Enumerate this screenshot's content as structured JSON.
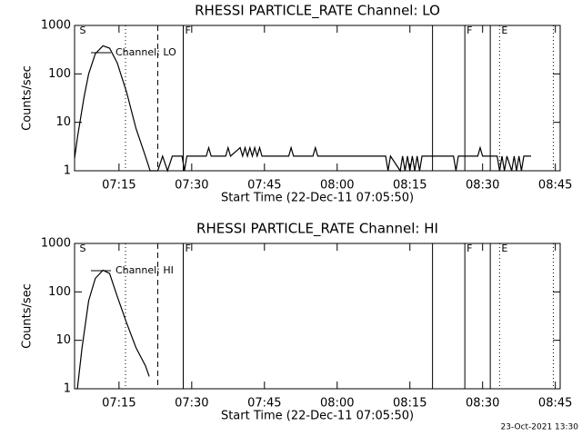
{
  "chart_data": [
    {
      "type": "line",
      "title": "RHESSI PARTICLE_RATE Channel: LO",
      "xlabel": "Start Time (22-Dec-11 07:05:50)",
      "ylabel": "Counts/sec",
      "log_y": true,
      "ylim": [
        1,
        1000
      ],
      "yticks": [
        1,
        10,
        100,
        1000
      ],
      "xlim": [
        "07:05:50",
        "08:46:00"
      ],
      "xticks": [
        "07:15",
        "07:30",
        "07:45",
        "08:00",
        "08:15",
        "08:30",
        "08:45"
      ],
      "markers": [
        {
          "time": "07:06:30",
          "label": "S"
        },
        {
          "time": "07:16:20",
          "style": "dotted"
        },
        {
          "time": "07:23:00",
          "style": "dashed"
        },
        {
          "time": "07:28:15",
          "style": "solid",
          "label": "F"
        },
        {
          "time": "08:19:40",
          "style": "solid"
        },
        {
          "time": "08:26:20",
          "style": "solid",
          "label": "F"
        },
        {
          "time": "08:31:35",
          "style": "solid"
        },
        {
          "time": "08:33:30",
          "style": "dotted",
          "label": "E"
        },
        {
          "time": "08:44:35",
          "style": "dotted"
        }
      ],
      "series": [
        {
          "name": "Channel: LO",
          "color": "#000000",
          "x": [
            "07:05:50",
            "07:06:25",
            "07:07:47",
            "07:08:45",
            "07:10:07",
            "07:11:41",
            "07:13:03",
            "07:14:37",
            "07:16:34",
            "07:18:31",
            "07:20:27",
            "07:21:25",
            "07:23:00",
            "07:24:00",
            "07:25:00",
            "07:26:00",
            "07:28:00",
            "07:28:30",
            "07:29:00",
            "07:33:00",
            "07:33:30",
            "07:34:00",
            "07:37:00",
            "07:37:30",
            "07:38:00",
            "07:40:00",
            "07:40:30",
            "07:41:00",
            "07:41:30",
            "07:42:00",
            "07:42:30",
            "07:43:00",
            "07:43:30",
            "07:44:00",
            "07:44:30",
            "07:50:00",
            "07:50:30",
            "07:51:00",
            "07:55:00",
            "07:55:30",
            "07:56:00",
            "08:10:00",
            "08:10:30",
            "08:11:00",
            "08:13:00",
            "08:13:30",
            "08:14:00",
            "08:14:30",
            "08:15:00",
            "08:15:30",
            "08:16:00",
            "08:16:30",
            "08:17:00",
            "08:17:30",
            "08:24:00",
            "08:24:30",
            "08:25:00",
            "08:29:00",
            "08:29:30",
            "08:30:00",
            "08:33:00",
            "08:33:30",
            "08:34:00",
            "08:34:30",
            "08:35:00",
            "08:36:00",
            "08:36:30",
            "08:37:00",
            "08:37:30",
            "08:38:00",
            "08:38:30",
            "08:40:00"
          ],
          "values": [
            1.8,
            4.8,
            33,
            100,
            260,
            380,
            340,
            170,
            42,
            7.4,
            2,
            1,
            1,
            2,
            1,
            2,
            2,
            1,
            2,
            2,
            3,
            2,
            2,
            3,
            2,
            3,
            2,
            3,
            2,
            3,
            2,
            3,
            2,
            3,
            2,
            2,
            3,
            2,
            2,
            3,
            2,
            2,
            1,
            2,
            1,
            2,
            1,
            2,
            1,
            2,
            1,
            2,
            1,
            2,
            2,
            1,
            2,
            2,
            3,
            2,
            2,
            1,
            2,
            1,
            2,
            1,
            2,
            1,
            2,
            1,
            2,
            2
          ]
        }
      ]
    },
    {
      "type": "line",
      "title": "RHESSI PARTICLE_RATE Channel: HI",
      "xlabel": "Start Time (22-Dec-11 07:05:50)",
      "ylabel": "Counts/sec",
      "log_y": true,
      "ylim": [
        1,
        1000
      ],
      "yticks": [
        1,
        10,
        100,
        1000
      ],
      "xlim": [
        "07:05:50",
        "08:46:00"
      ],
      "xticks": [
        "07:15",
        "07:30",
        "07:45",
        "08:00",
        "08:15",
        "08:30",
        "08:45"
      ],
      "markers": [
        {
          "time": "07:06:30",
          "label": "S"
        },
        {
          "time": "07:16:20",
          "style": "dotted"
        },
        {
          "time": "07:23:00",
          "style": "dashed"
        },
        {
          "time": "07:28:15",
          "style": "solid",
          "label": "F"
        },
        {
          "time": "08:19:40",
          "style": "solid"
        },
        {
          "time": "08:26:20",
          "style": "solid",
          "label": "F"
        },
        {
          "time": "08:31:35",
          "style": "solid"
        },
        {
          "time": "08:33:30",
          "style": "dotted",
          "label": "E"
        },
        {
          "time": "08:44:35",
          "style": "dotted"
        }
      ],
      "series": [
        {
          "name": "Channel: HI",
          "color": "#000000",
          "x": [
            "07:06:25",
            "07:07:22",
            "07:08:45",
            "07:10:07",
            "07:11:41",
            "07:13:03",
            "07:14:37",
            "07:16:34",
            "07:18:31",
            "07:20:27",
            "07:21:14"
          ],
          "values": [
            1,
            7,
            66,
            190,
            280,
            240,
            82,
            23,
            7,
            3,
            1.8
          ]
        }
      ]
    }
  ],
  "footer": "23-Oct-2021 13:30"
}
